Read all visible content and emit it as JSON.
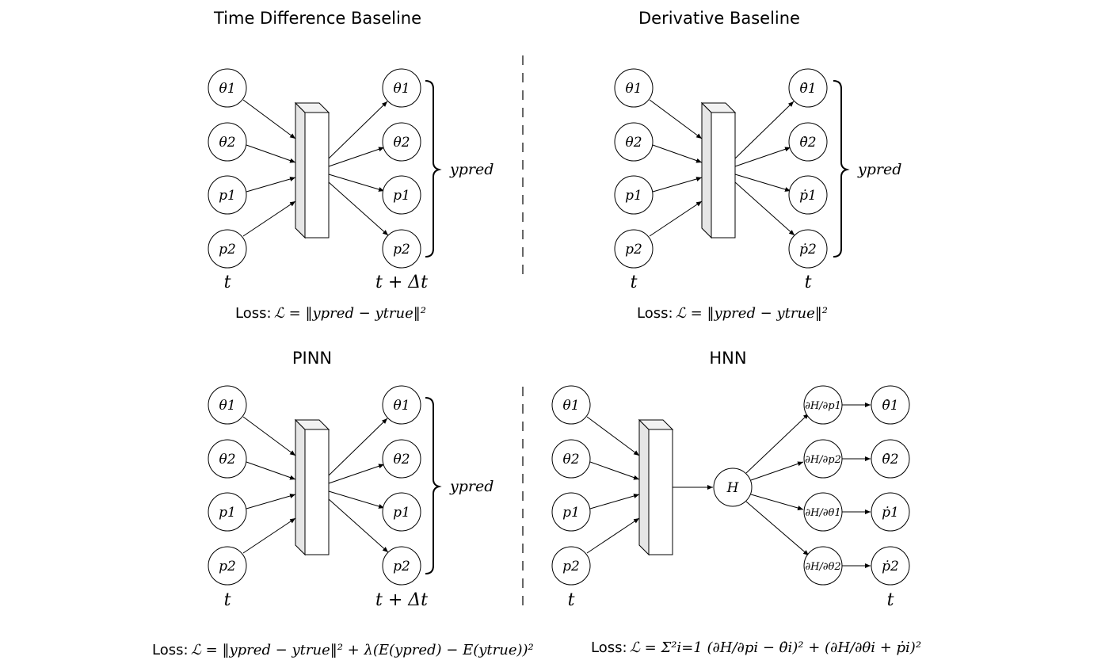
{
  "panels": {
    "time_difference": {
      "title": "Time Difference Baseline",
      "inputs": [
        "θ1",
        "θ2",
        "p1",
        "p2"
      ],
      "outputs": [
        "θ1",
        "θ2",
        "p1",
        "p2"
      ],
      "input_time": "t",
      "output_time": "t + Δt",
      "output_group": "ypred",
      "loss_prefix": "Loss:",
      "loss": "ℒ = ‖ypred − ytrue‖²"
    },
    "derivative": {
      "title": "Derivative Baseline",
      "inputs": [
        "θ1",
        "θ2",
        "p1",
        "p2"
      ],
      "outputs": [
        "θ̇1",
        "θ̇2",
        "ṗ1",
        "ṗ2"
      ],
      "input_time": "t",
      "output_time": "t",
      "output_group": "ypred",
      "loss_prefix": "Loss:",
      "loss": "ℒ = ‖ypred − ytrue‖²"
    },
    "pinn": {
      "title": "PINN",
      "inputs": [
        "θ1",
        "θ2",
        "p1",
        "p2"
      ],
      "outputs": [
        "θ1",
        "θ2",
        "p1",
        "p2"
      ],
      "input_time": "t",
      "output_time": "t + Δt",
      "output_group": "ypred",
      "loss_prefix": "Loss:",
      "loss": "ℒ = ‖ypred − ytrue‖² + λ(E(ypred) − E(ytrue))²"
    },
    "hnn": {
      "title": "HNN",
      "inputs": [
        "θ1",
        "θ2",
        "p1",
        "p2"
      ],
      "hamiltonian": "H",
      "gradients": [
        "∂H/∂p1",
        "∂H/∂p2",
        "∂H/∂θ1",
        "∂H/∂θ2"
      ],
      "outputs": [
        "θ̇1",
        "θ̇2",
        "ṗ1",
        "ṗ2"
      ],
      "input_time": "t",
      "output_time": "t",
      "loss_prefix": "Loss:",
      "loss": "ℒ = Σ²i=1 (∂H/∂pi − θ̇i)² + (∂H/∂θi + ṗi)²"
    }
  }
}
